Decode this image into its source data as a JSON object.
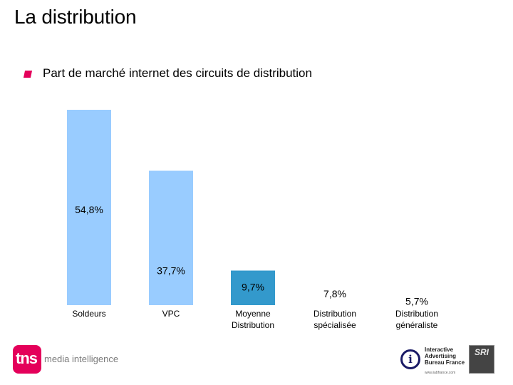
{
  "header": {
    "title": "La distribution",
    "subtitle": "Part de marché internet des circuits de distribution"
  },
  "chart_data": {
    "type": "bar",
    "categories": [
      [
        "Soldeurs"
      ],
      [
        "VPC"
      ],
      [
        "Moyenne",
        "Distribution"
      ],
      [
        "Distribution",
        "spécialisée"
      ],
      [
        "Distribution",
        "généraliste"
      ]
    ],
    "values": [
      54.8,
      37.7,
      9.7,
      7.8,
      5.7
    ],
    "labels": [
      "54,8%",
      "37,7%",
      "9,7%",
      "7,8%",
      "5,7%"
    ],
    "bar_colors": [
      "#99ccff",
      "#99ccff",
      "#3399cc",
      "#ffffff",
      "#ffffff"
    ],
    "ylim": [
      0,
      54.8
    ],
    "grid": false,
    "legend": "none"
  },
  "footer": {
    "tns_logo": "tns",
    "tns_tagline": "media intelligence",
    "iab_lines": [
      "Interactive",
      "Advertising",
      "Bureau France"
    ],
    "iab_url": "www.iabfrance.com",
    "sri_logo": "SRI"
  },
  "colors": {
    "accent": "#e4005a",
    "bar_light": "#99ccff",
    "bar_dark": "#3399cc"
  }
}
